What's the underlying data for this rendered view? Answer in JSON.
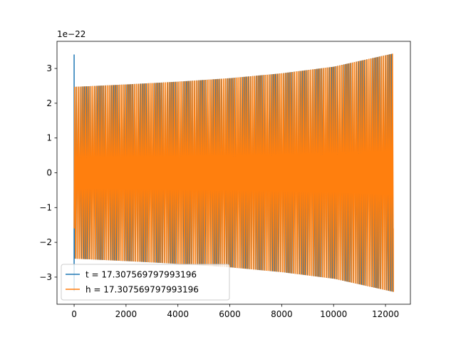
{
  "chart_data": {
    "type": "line",
    "title": "",
    "xlabel": "",
    "ylabel": "",
    "y_offset_label": "1e−22",
    "xlim": [
      -660,
      12960
    ],
    "ylim": [
      -3.78,
      3.78
    ],
    "x_ticks": [
      0,
      2000,
      4000,
      6000,
      8000,
      10000,
      12000
    ],
    "x_tick_labels": [
      "0",
      "2000",
      "4000",
      "6000",
      "8000",
      "10000",
      "12000"
    ],
    "y_ticks": [
      -3,
      -2,
      -1,
      0,
      1,
      2,
      3
    ],
    "y_tick_labels": [
      "−3",
      "−2",
      "−1",
      "0",
      "1",
      "2",
      "3"
    ],
    "grid": false,
    "legend_position": "lower-left",
    "series": [
      {
        "name": "t = 17.307569797993196",
        "color": "#1f77b4",
        "x_start": 0,
        "x_end": 12300,
        "initial_spike": [
          3.4,
          -3.4
        ],
        "envelope": [
          [
            0,
            2.47
          ],
          [
            2000,
            2.54
          ],
          [
            4000,
            2.62
          ],
          [
            6000,
            2.72
          ],
          [
            8000,
            2.86
          ],
          [
            10000,
            3.05
          ],
          [
            12300,
            3.43
          ]
        ]
      },
      {
        "name": "h = 17.307569797993196",
        "color": "#ff7f0e",
        "x_start": 0,
        "x_end": 12300,
        "start_value": -1.6,
        "end_value": -1.6,
        "envelope": [
          [
            0,
            2.47
          ],
          [
            2000,
            2.54
          ],
          [
            4000,
            2.62
          ],
          [
            6000,
            2.72
          ],
          [
            8000,
            2.86
          ],
          [
            10000,
            3.05
          ],
          [
            12300,
            3.43
          ]
        ]
      }
    ]
  }
}
